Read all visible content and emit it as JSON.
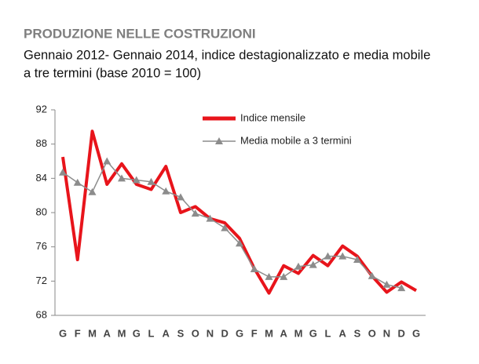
{
  "chart_data": {
    "type": "line",
    "title": "PRODUZIONE NELLE COSTRUZIONI",
    "subtitle": [
      "Gennaio 2012- Gennaio 2014, indice destagionalizzato e media mobile",
      "a tre termini (base 2010 = 100)"
    ],
    "categories": [
      "G",
      "F",
      "M",
      "A",
      "M",
      "G",
      "L",
      "A",
      "S",
      "O",
      "N",
      "D",
      "G",
      "F",
      "M",
      "A",
      "M",
      "G",
      "L",
      "A",
      "S",
      "O",
      "N",
      "D",
      "G"
    ],
    "series": [
      {
        "name": "Indice mensile",
        "color": "#e8141b",
        "marker": "none",
        "values": [
          86.5,
          74.5,
          89.5,
          83.3,
          85.7,
          83.3,
          82.7,
          85.4,
          80.0,
          80.7,
          79.3,
          78.8,
          77.0,
          73.5,
          70.6,
          73.8,
          72.9,
          75.0,
          73.8,
          76.1,
          74.9,
          72.6,
          70.7,
          71.9,
          70.9
        ]
      },
      {
        "name": "Media mobile a 3 termini",
        "color": "#8c8c8c",
        "marker": "triangle",
        "values": [
          84.7,
          83.5,
          82.4,
          86.0,
          84.0,
          83.8,
          83.6,
          82.5,
          81.8,
          79.9,
          79.3,
          78.2,
          76.4,
          73.4,
          72.5,
          72.5,
          73.7,
          73.9,
          74.9,
          74.9,
          74.5,
          72.6,
          71.6,
          71.2,
          null
        ]
      }
    ],
    "ylim": [
      68,
      92
    ],
    "yticks": [
      68,
      72,
      76,
      80,
      84,
      88,
      92
    ],
    "grid": false,
    "legend": "top-right"
  }
}
